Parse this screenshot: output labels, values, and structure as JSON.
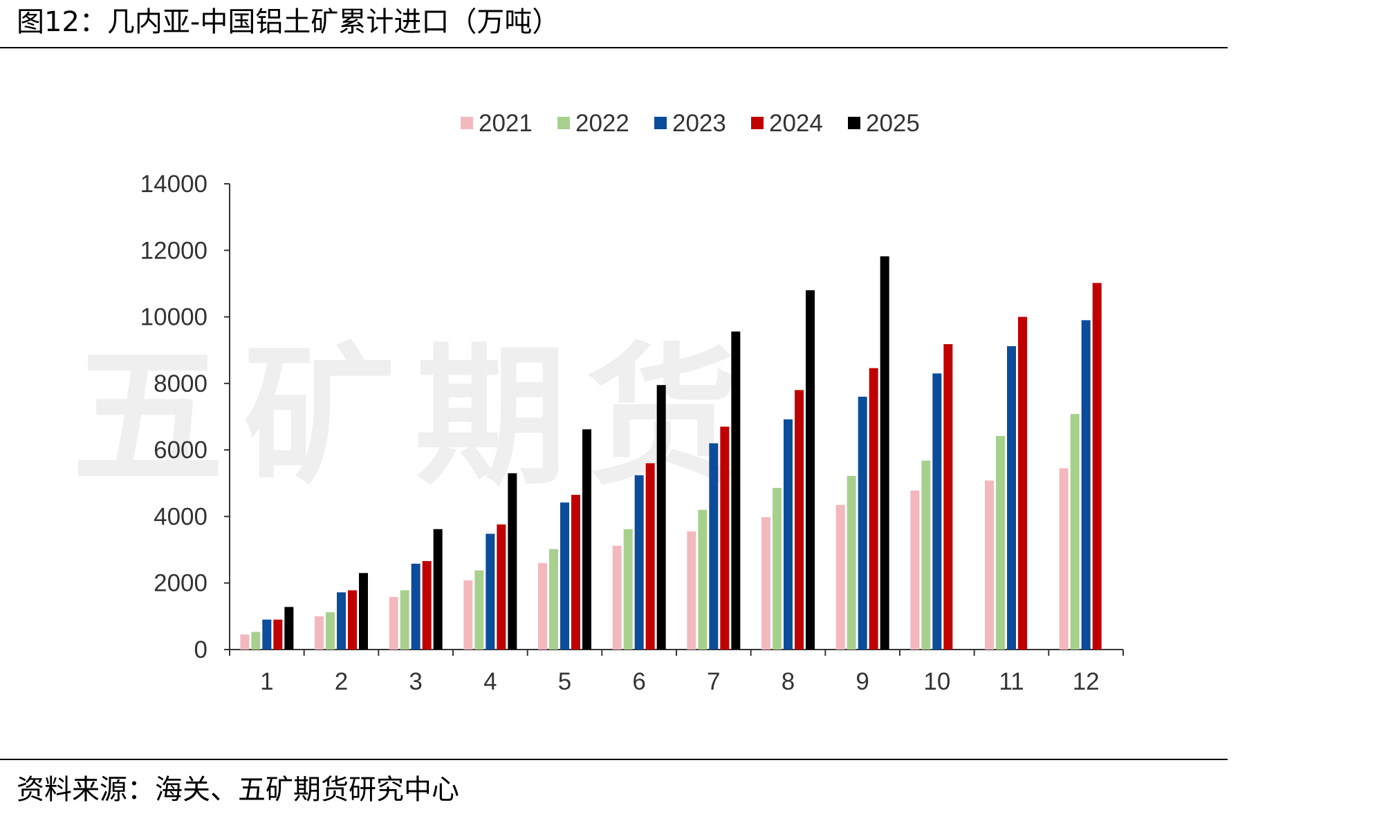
{
  "figure": {
    "title": "图12：几内亚-中国铝土矿累计进口（万吨）",
    "source": "资料来源：海关、五矿期货研究中心",
    "watermark": "五矿期货"
  },
  "chart_data": {
    "type": "bar",
    "title": "",
    "xlabel": "",
    "ylabel": "",
    "categories": [
      "1",
      "2",
      "3",
      "4",
      "5",
      "6",
      "7",
      "8",
      "9",
      "10",
      "11",
      "12"
    ],
    "ylim": [
      0,
      14000
    ],
    "yticks": [
      0,
      2000,
      4000,
      6000,
      8000,
      10000,
      12000,
      14000
    ],
    "grid": false,
    "legend_position": "top-center",
    "series": [
      {
        "name": "2021",
        "color": "#f2b8be",
        "values": [
          450,
          1000,
          1580,
          2080,
          2600,
          3120,
          3550,
          3980,
          4350,
          4780,
          5080,
          5450
        ]
      },
      {
        "name": "2022",
        "color": "#a8d08d",
        "values": [
          530,
          1120,
          1780,
          2380,
          3020,
          3620,
          4200,
          4860,
          5220,
          5680,
          6420,
          7080
        ]
      },
      {
        "name": "2023",
        "color": "#0b4c9b",
        "values": [
          900,
          1720,
          2580,
          3480,
          4420,
          5240,
          6200,
          6920,
          7600,
          8300,
          9120,
          9900
        ]
      },
      {
        "name": "2024",
        "color": "#c00000",
        "values": [
          900,
          1780,
          2660,
          3760,
          4650,
          5600,
          6700,
          7800,
          8460,
          9180,
          10000,
          11020
        ]
      },
      {
        "name": "2025",
        "color": "#000000",
        "values": [
          1280,
          2300,
          3620,
          5300,
          6620,
          7950,
          9560,
          10800,
          11820,
          null,
          null,
          null
        ]
      }
    ]
  }
}
